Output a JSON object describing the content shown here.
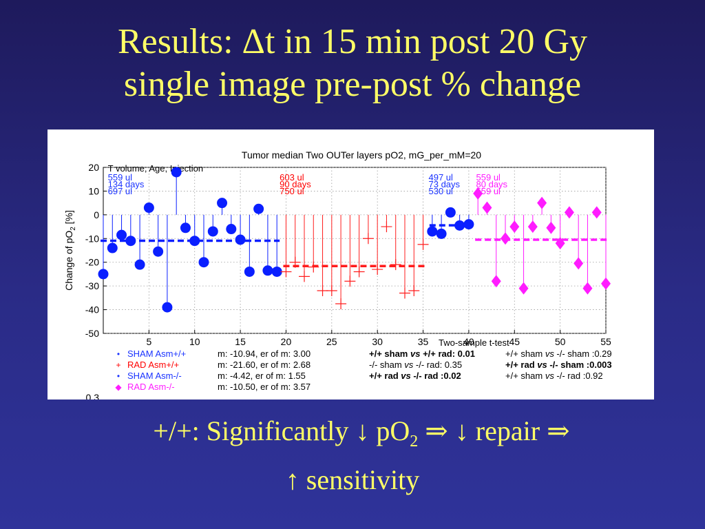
{
  "slide": {
    "title_line1": "Results: Δt in 15 min post 20 Gy",
    "title_line2": "single image pre-post  % change",
    "caption": {
      "prefix": "+/+: Significantly ",
      "down1": "↓",
      "po": " pO",
      "sub": "2",
      "mid": " ⇒ ",
      "down2": "↓",
      "repair": " repair ",
      "arrow": "⇒",
      "up": "↑",
      "line2": " sensitivity"
    }
  },
  "chart_data": {
    "type": "scatter",
    "title": "Tumor median Two OUTer layers pO2, mG_per_mM=20",
    "ylabel": "Change of pO",
    "ylabel_sub": "2",
    "ylabel_suffix": " [%]",
    "xlim": [
      0,
      55
    ],
    "ylim": [
      -50,
      20
    ],
    "xticks": [
      5,
      10,
      15,
      20,
      25,
      30,
      35,
      40,
      45,
      50,
      55
    ],
    "yticks": [
      20,
      10,
      0,
      -10,
      -20,
      -30,
      -40,
      -50
    ],
    "grid": true,
    "extra_tick_text": "0.3",
    "corner_label": "T volume, Age, Injection",
    "group_labels": [
      {
        "x": 0.5,
        "color": "#1a33ff",
        "lines": [
          "559 ul",
          "134 days",
          "697 ul"
        ]
      },
      {
        "x": 19.3,
        "color": "#ff0000",
        "lines": [
          "603 ul",
          "90 days",
          "750 ul"
        ]
      },
      {
        "x": 35.6,
        "color": "#1a33ff",
        "lines": [
          "497 ul",
          "73 days",
          "530 ul"
        ]
      },
      {
        "x": 40.8,
        "color": "#ff1cff",
        "lines": [
          "559 ul",
          "80 days",
          "559 ul"
        ]
      }
    ],
    "series": [
      {
        "name": "SHAM Asm+/+",
        "marker": "circle",
        "color": "#0a1fff",
        "x": [
          0,
          1,
          2,
          3,
          4,
          5,
          6,
          7,
          8,
          9,
          10,
          11,
          12,
          13,
          14,
          15,
          16,
          17,
          18,
          19
        ],
        "y": [
          -25,
          -14,
          -8.5,
          -11,
          -21,
          3,
          -15.5,
          -39,
          18,
          -5.5,
          -11,
          -20,
          -7,
          5,
          -6,
          -10.5,
          -24,
          2.5,
          -23.5,
          -24
        ],
        "mean": -10.94
      },
      {
        "name": "RAD Asm+/+",
        "marker": "plus",
        "color": "#ff1c1c",
        "x": [
          20,
          21,
          22,
          23,
          24,
          25,
          26,
          27,
          28,
          29,
          30,
          31,
          32,
          33,
          34,
          35
        ],
        "y": [
          -24,
          -20,
          -26,
          -22,
          -32,
          -32,
          -37.5,
          -28,
          -24,
          -10,
          -23,
          -5,
          -21,
          -33,
          -32,
          -12.5
        ],
        "y_override": {
          "35": 1
        },
        "mean": -21.6
      },
      {
        "name": "SHAM Asm-/-",
        "marker": "circle",
        "color": "#0a1fff",
        "x": [
          36,
          37,
          38,
          39,
          40
        ],
        "y": [
          -7,
          -8,
          1,
          -4.5,
          -4
        ],
        "mean": -4.42
      },
      {
        "name": "RAD Asm-/-",
        "marker": "diamond",
        "color": "#ff1cff",
        "x": [
          41,
          42,
          43,
          44,
          45,
          46,
          47,
          48,
          49,
          50,
          51,
          52,
          53,
          54,
          55
        ],
        "y": [
          9,
          3,
          -28,
          -10,
          -5,
          -31,
          -5,
          5,
          -5.5,
          -12,
          1,
          -20.5,
          -31,
          1,
          -29
        ],
        "mean": -10.5
      }
    ],
    "stats": [
      {
        "dot": "•",
        "name": "SHAM Asm+/+",
        "color": "#1a33ff",
        "text": "m: -10.94, er of m: 3.00"
      },
      {
        "dot": "+",
        "name": "RAD Asm+/+",
        "color": "#ff0000",
        "text": "m: -21.60, er of m: 2.68"
      },
      {
        "dot": "•",
        "name": "SHAM Asm-/-",
        "color": "#1a33ff",
        "text": "m: -4.42, er of m: 1.55"
      },
      {
        "dot": "◆",
        "name": "RAD Asm-/-",
        "color": "#ff1cff",
        "text": "m: -10.50, er of m: 3.57"
      }
    ],
    "ttest_title": "Two-sample t-test",
    "ttest": [
      [
        {
          "text": "+/+ sham ",
          "bold": true
        },
        {
          "text": "vs",
          "bold": true,
          "italic": true
        },
        {
          "text": " +/+ rad: 0.01",
          "bold": true
        }
      ],
      [
        {
          "text": "+/+ sham ",
          "bold": false
        },
        {
          "text": "vs",
          "bold": false,
          "italic": true
        },
        {
          "text": " -/- sham :0.29",
          "bold": false
        }
      ],
      [
        {
          "text": "-/- sham ",
          "bold": false
        },
        {
          "text": "vs",
          "bold": false,
          "italic": true
        },
        {
          "text": " -/- rad: 0.35",
          "bold": false
        }
      ],
      [
        {
          "text": "+/+ rad ",
          "bold": true
        },
        {
          "text": "vs",
          "bold": true,
          "italic": true
        },
        {
          "text": " -/- sham :0.003",
          "bold": true
        }
      ],
      [
        {
          "text": "+/+ rad ",
          "bold": true
        },
        {
          "text": "vs",
          "bold": true,
          "italic": true
        },
        {
          "text": " -/- rad :0.02",
          "bold": true
        }
      ],
      [
        {
          "text": "+/+ sham ",
          "bold": false
        },
        {
          "text": "vs",
          "bold": false,
          "italic": true
        },
        {
          "text": " -/- rad :0.92",
          "bold": false
        }
      ]
    ]
  }
}
